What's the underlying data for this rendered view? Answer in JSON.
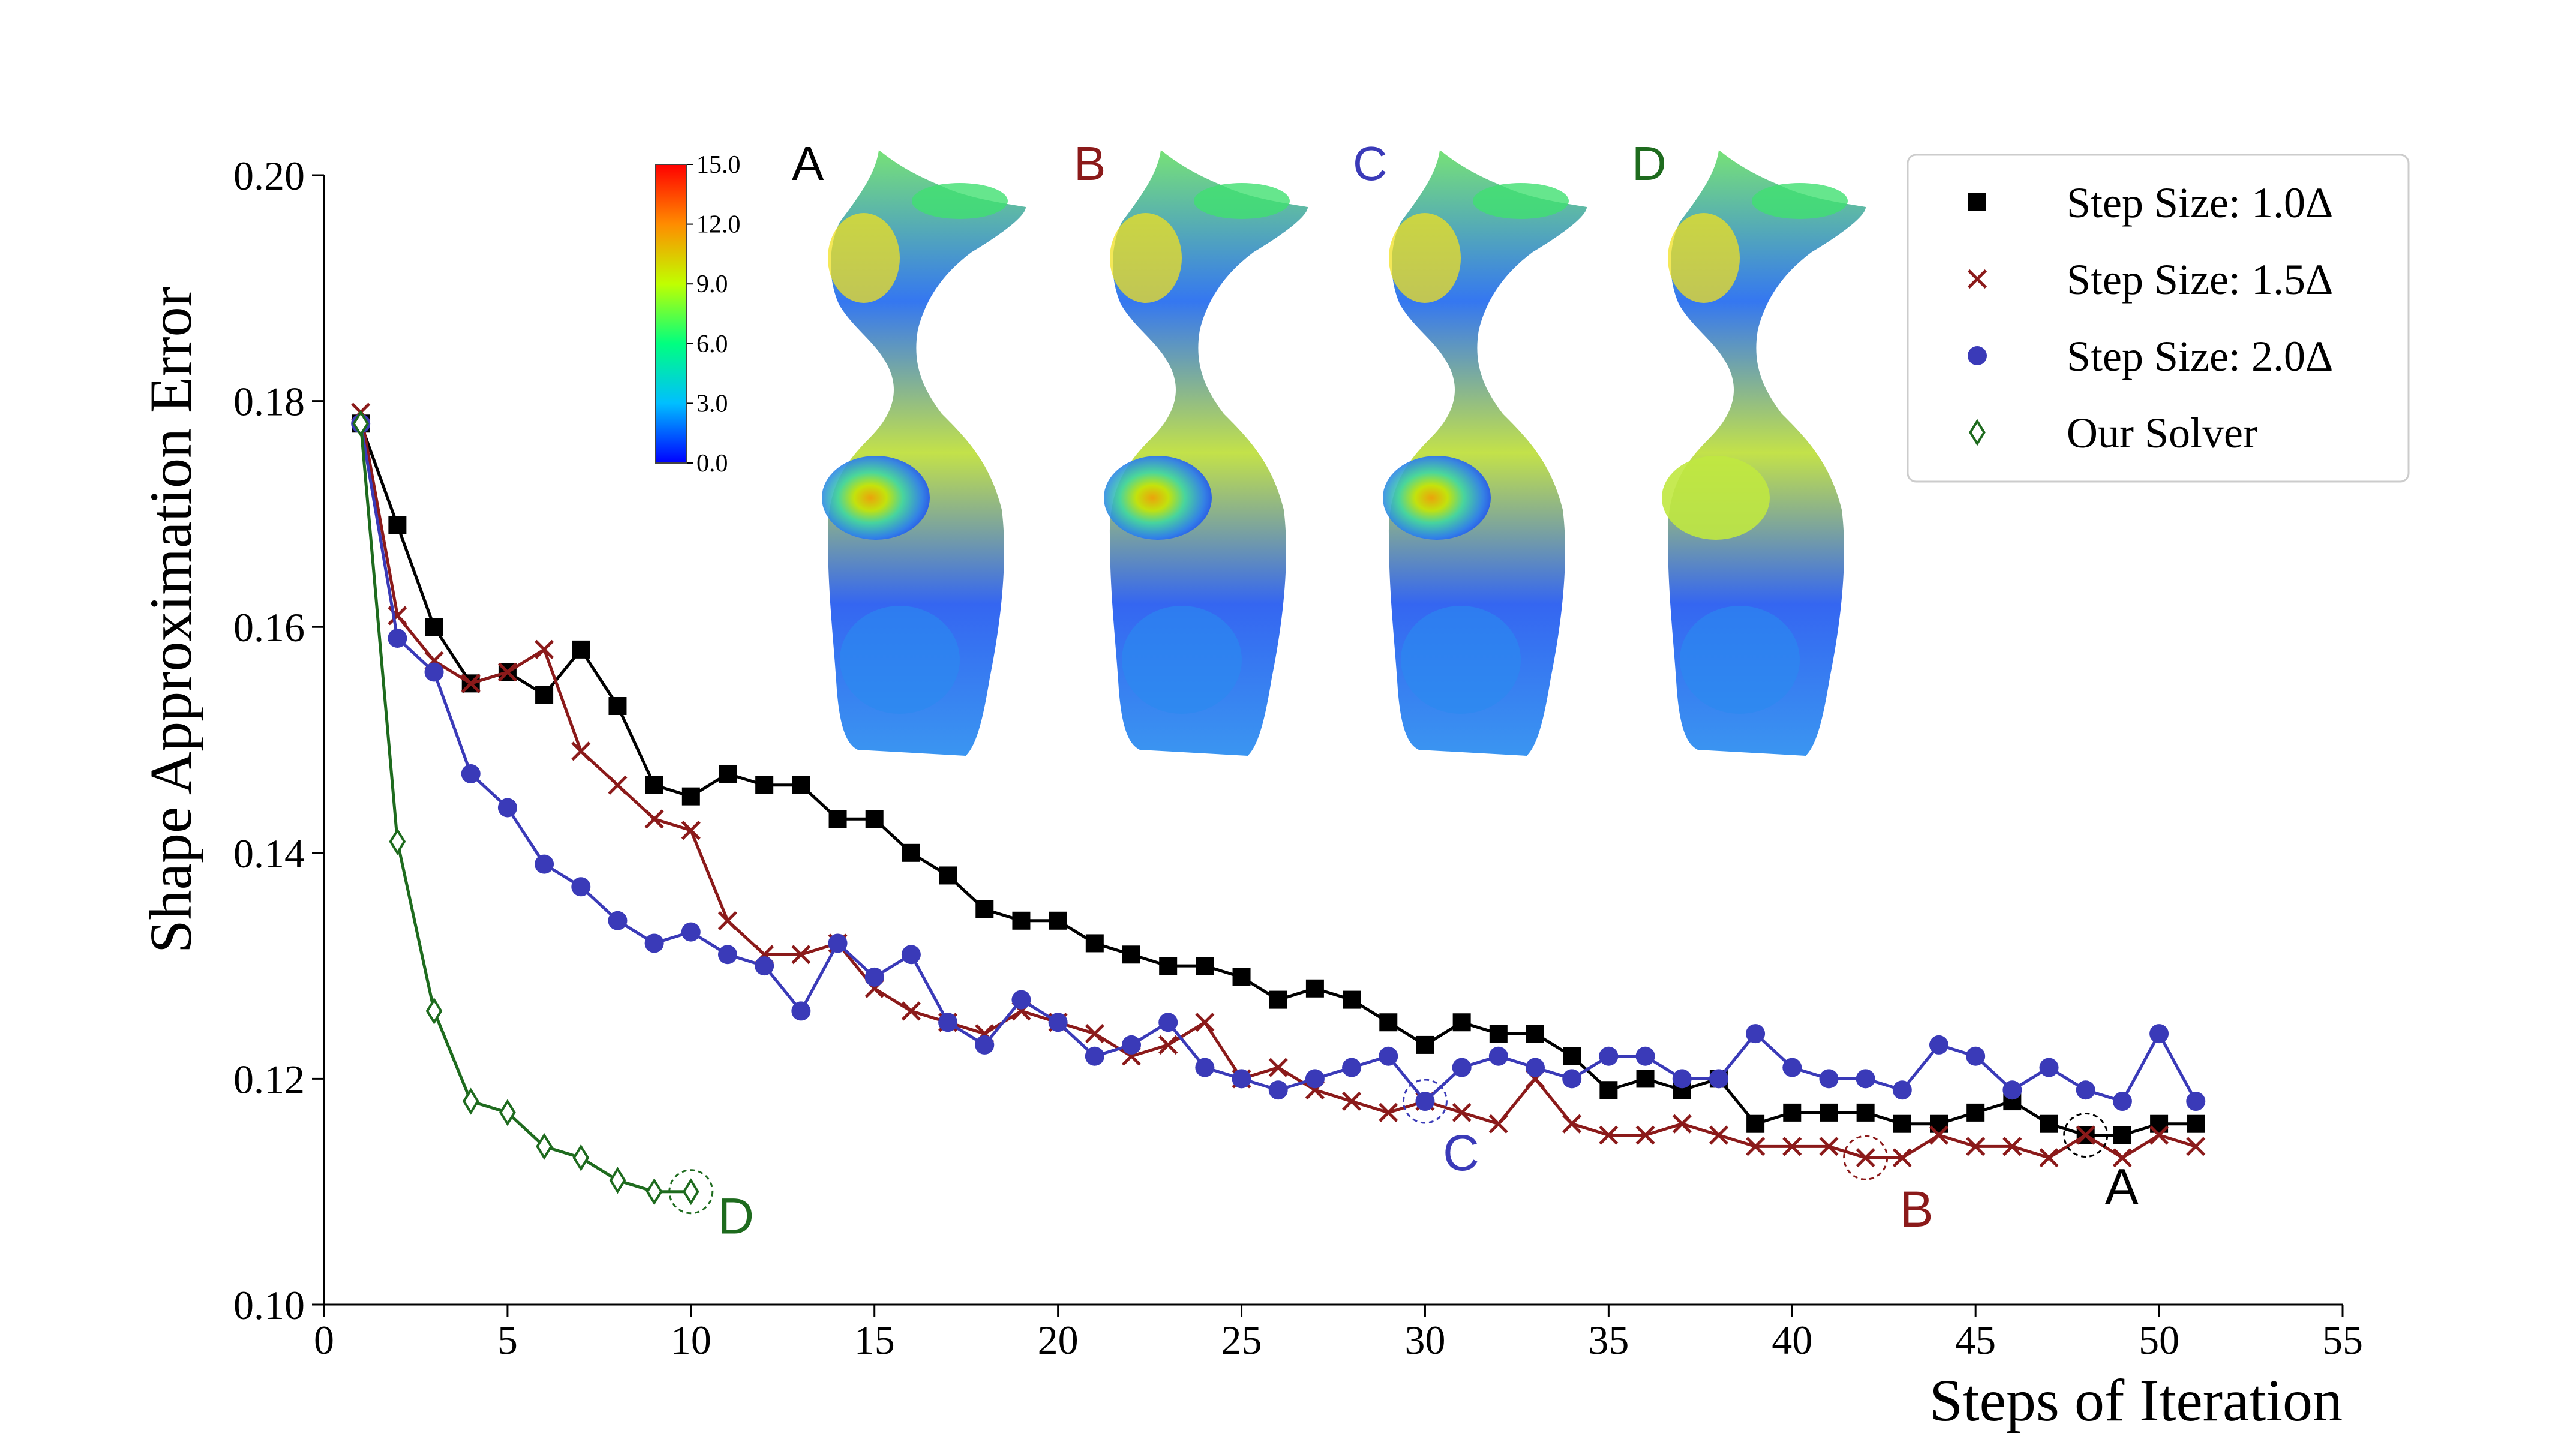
{
  "chart_data": {
    "type": "line",
    "xlabel": "Steps of Iteration",
    "ylabel": "Shape Approximation Error",
    "xlim": [
      0,
      55
    ],
    "ylim": [
      0.1,
      0.2
    ],
    "xticks": [
      0,
      5,
      10,
      15,
      20,
      25,
      30,
      35,
      40,
      45,
      50,
      55
    ],
    "yticks": [
      0.1,
      0.12,
      0.14,
      0.16,
      0.18,
      0.2
    ],
    "ytick_labels": [
      "0.10",
      "0.12",
      "0.14",
      "0.16",
      "0.18",
      "0.20"
    ],
    "legend_position": "top-right",
    "series": [
      {
        "name": "Step Size: 1.0Δ",
        "marker": "square",
        "color": "#000000",
        "x": [
          1,
          2,
          3,
          4,
          5,
          6,
          7,
          8,
          9,
          10,
          11,
          12,
          13,
          14,
          15,
          16,
          17,
          18,
          19,
          20,
          21,
          22,
          23,
          24,
          25,
          26,
          27,
          28,
          29,
          30,
          31,
          32,
          33,
          34,
          35,
          36,
          37,
          38,
          39,
          40,
          41,
          42,
          43,
          44,
          45,
          46,
          47,
          48,
          49,
          50,
          51
        ],
        "values": [
          0.178,
          0.169,
          0.16,
          0.155,
          0.156,
          0.154,
          0.158,
          0.153,
          0.146,
          0.145,
          0.147,
          0.146,
          0.146,
          0.143,
          0.143,
          0.14,
          0.138,
          0.135,
          0.134,
          0.134,
          0.132,
          0.131,
          0.13,
          0.13,
          0.129,
          0.127,
          0.128,
          0.127,
          0.125,
          0.123,
          0.125,
          0.124,
          0.124,
          0.122,
          0.119,
          0.12,
          0.119,
          0.12,
          0.116,
          0.117,
          0.117,
          0.117,
          0.116,
          0.116,
          0.117,
          0.118,
          0.116,
          0.115,
          0.115,
          0.116,
          0.116
        ]
      },
      {
        "name": "Step Size: 1.5Δ",
        "marker": "x",
        "color": "#8b1a1a",
        "x": [
          1,
          2,
          3,
          4,
          5,
          6,
          7,
          8,
          9,
          10,
          11,
          12,
          13,
          14,
          15,
          16,
          17,
          18,
          19,
          20,
          21,
          22,
          23,
          24,
          25,
          26,
          27,
          28,
          29,
          30,
          31,
          32,
          33,
          34,
          35,
          36,
          37,
          38,
          39,
          40,
          41,
          42,
          43,
          44,
          45,
          46,
          47,
          48,
          49,
          50,
          51
        ],
        "values": [
          0.179,
          0.161,
          0.157,
          0.155,
          0.156,
          0.158,
          0.149,
          0.146,
          0.143,
          0.142,
          0.134,
          0.131,
          0.131,
          0.132,
          0.128,
          0.126,
          0.125,
          0.124,
          0.126,
          0.125,
          0.124,
          0.122,
          0.123,
          0.125,
          0.12,
          0.121,
          0.119,
          0.118,
          0.117,
          0.118,
          0.117,
          0.116,
          0.12,
          0.116,
          0.115,
          0.115,
          0.116,
          0.115,
          0.114,
          0.114,
          0.114,
          0.113,
          0.113,
          0.115,
          0.114,
          0.114,
          0.113,
          0.115,
          0.113,
          0.115,
          0.114
        ]
      },
      {
        "name": "Step Size: 2.0Δ",
        "marker": "circle",
        "color": "#3a3ab8",
        "x": [
          1,
          2,
          3,
          4,
          5,
          6,
          7,
          8,
          9,
          10,
          11,
          12,
          13,
          14,
          15,
          16,
          17,
          18,
          19,
          20,
          21,
          22,
          23,
          24,
          25,
          26,
          27,
          28,
          29,
          30,
          31,
          32,
          33,
          34,
          35,
          36,
          37,
          38,
          39,
          40,
          41,
          42,
          43,
          44,
          45,
          46,
          47,
          48,
          49,
          50,
          51
        ],
        "values": [
          0.178,
          0.159,
          0.156,
          0.147,
          0.144,
          0.139,
          0.137,
          0.134,
          0.132,
          0.133,
          0.131,
          0.13,
          0.126,
          0.132,
          0.129,
          0.131,
          0.125,
          0.123,
          0.127,
          0.125,
          0.122,
          0.123,
          0.125,
          0.121,
          0.12,
          0.119,
          0.12,
          0.121,
          0.122,
          0.118,
          0.121,
          0.122,
          0.121,
          0.12,
          0.122,
          0.122,
          0.12,
          0.12,
          0.124,
          0.121,
          0.12,
          0.12,
          0.119,
          0.123,
          0.122,
          0.119,
          0.121,
          0.119,
          0.118,
          0.124,
          0.118
        ]
      },
      {
        "name": "Our Solver",
        "marker": "diamond",
        "color": "#1e6b1e",
        "x": [
          1,
          2,
          3,
          4,
          5,
          6,
          7,
          8,
          9,
          10
        ],
        "values": [
          0.178,
          0.141,
          0.126,
          0.118,
          0.117,
          0.114,
          0.113,
          0.111,
          0.11,
          0.11
        ]
      }
    ],
    "annotations": [
      {
        "label": "A",
        "x": 48,
        "y": 0.115,
        "color": "#000000"
      },
      {
        "label": "B",
        "x": 42,
        "y": 0.113,
        "color": "#8b1a1a"
      },
      {
        "label": "C",
        "x": 30,
        "y": 0.118,
        "color": "#3a3ab8"
      },
      {
        "label": "D",
        "x": 10,
        "y": 0.11,
        "color": "#1e6b1e"
      }
    ],
    "colorbar": {
      "ticks": [
        "15.0",
        "12.0",
        "9.0",
        "6.0",
        "3.0",
        "0.0"
      ],
      "range": [
        0.0,
        15.0
      ],
      "colormap": "jet"
    },
    "inset_labels": [
      {
        "label": "A",
        "color": "#000000"
      },
      {
        "label": "B",
        "color": "#8b1a1a"
      },
      {
        "label": "C",
        "color": "#3a3ab8"
      },
      {
        "label": "D",
        "color": "#1e6b1e"
      }
    ]
  }
}
